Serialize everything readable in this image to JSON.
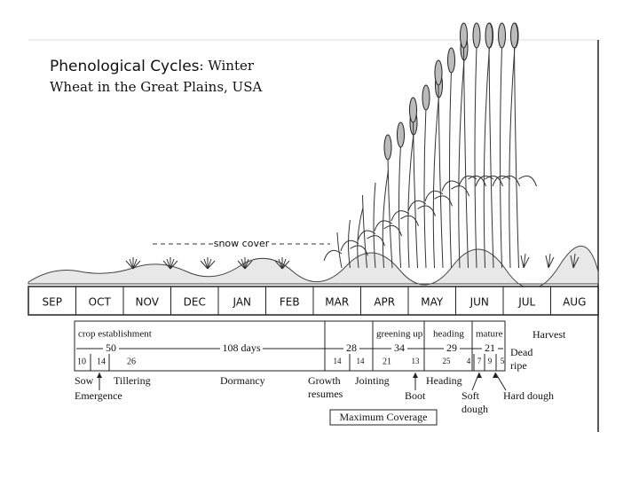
{
  "title": {
    "emphasis": "Phenological Cycles",
    "rest": ": Winter",
    "line2": "Wheat in the Great Plains, USA"
  },
  "snow_cover": "snow cover",
  "months": [
    "SEP",
    "OCT",
    "NOV",
    "DEC",
    "JAN",
    "FEB",
    "MAR",
    "APR",
    "MAY",
    "JUN",
    "JUL",
    "AUG"
  ],
  "stages": [
    "crop establishment",
    "greening up",
    "heading",
    "mature"
  ],
  "harvest": "Harvest",
  "durations": [
    50,
    "108 days",
    28,
    34,
    29,
    21
  ],
  "dates": [
    10,
    14,
    26,
    14,
    14,
    21,
    13,
    25,
    4,
    7,
    9,
    5
  ],
  "events": [
    [
      "Sow"
    ],
    [
      "Tillering"
    ],
    [
      "Emergence"
    ],
    [
      "Dormancy"
    ],
    [
      "Growth",
      "resumes"
    ],
    [
      "Jointing"
    ],
    [
      "Boot"
    ],
    [
      "Heading"
    ],
    [
      "Soft",
      "dough"
    ],
    [
      "Hard dough"
    ],
    [
      "Dead",
      "ripe"
    ]
  ],
  "max_coverage": "Maximum Coverage"
}
